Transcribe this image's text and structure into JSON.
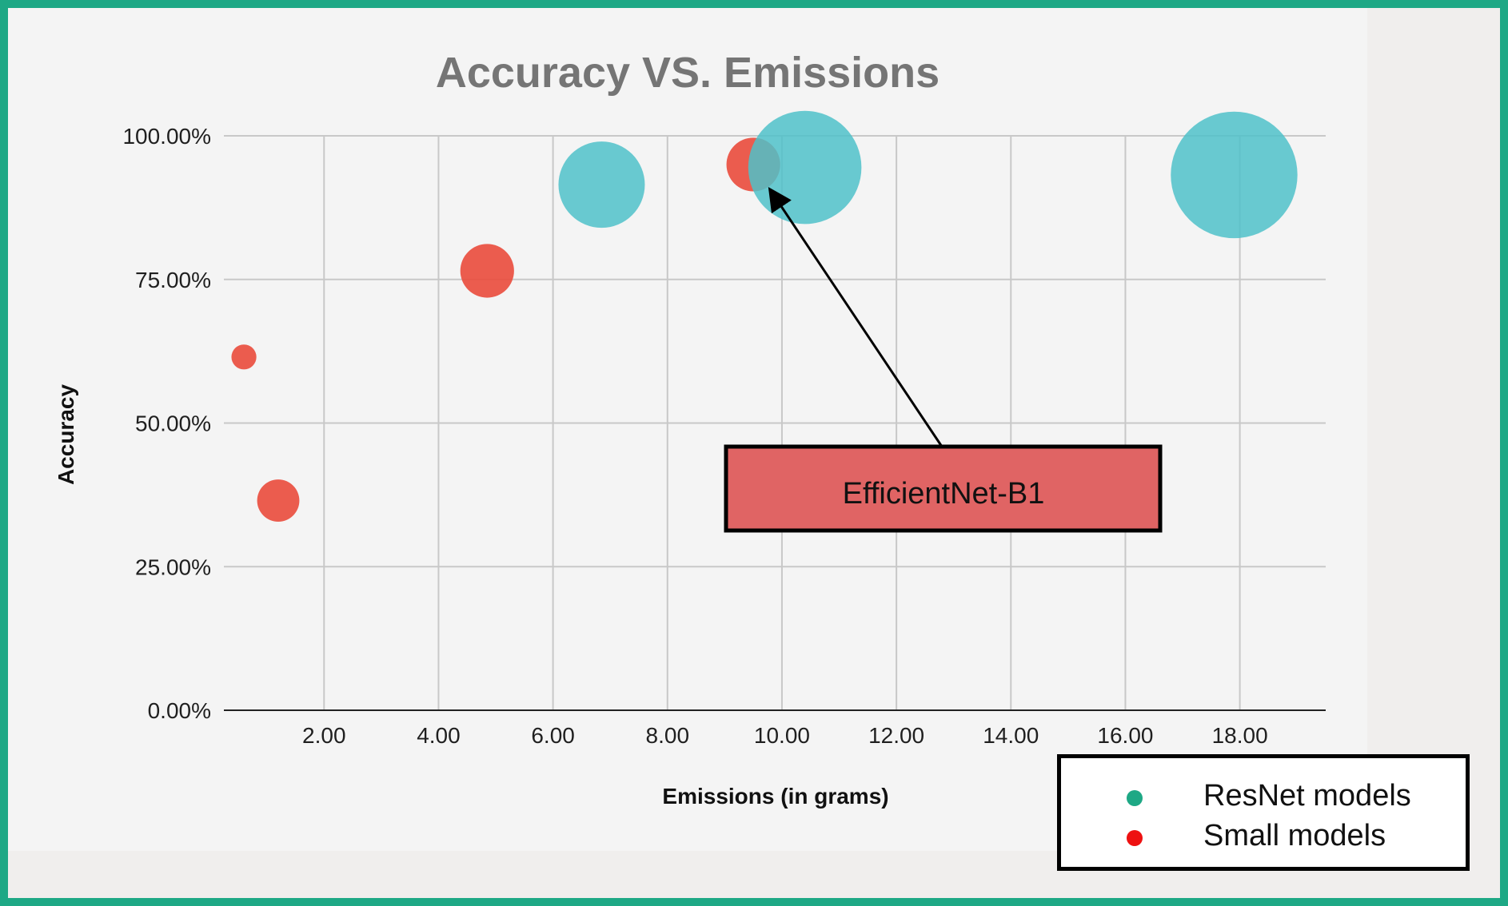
{
  "chart_data": {
    "type": "scatter",
    "title": "Accuracy VS. Emissions",
    "xlabel": "Emissions (in grams)",
    "ylabel": "Accuracy",
    "xlim": [
      0.25,
      19.5
    ],
    "ylim": [
      0,
      100
    ],
    "x_ticks": [
      "2.00",
      "4.00",
      "6.00",
      "8.00",
      "10.00",
      "12.00",
      "14.00",
      "16.00",
      "18.00"
    ],
    "y_ticks": [
      "0.00%",
      "25.00%",
      "50.00%",
      "75.00%",
      "100.00%"
    ],
    "grid": true,
    "series": [
      {
        "name": "ResNet models",
        "color": "#4fc1c9",
        "points": [
          {
            "x": 6.85,
            "y": 91.5,
            "size": 45
          },
          {
            "x": 10.4,
            "y": 94.5,
            "size": 59
          },
          {
            "x": 17.9,
            "y": 93.2,
            "size": 66
          }
        ]
      },
      {
        "name": "Small models",
        "color": "#ea4b3c",
        "points": [
          {
            "x": 0.6,
            "y": 61.5,
            "size": 13
          },
          {
            "x": 1.2,
            "y": 36.5,
            "size": 22
          },
          {
            "x": 4.85,
            "y": 76.5,
            "size": 28
          },
          {
            "x": 9.5,
            "y": 95,
            "size": 28
          }
        ]
      }
    ],
    "annotations": [
      {
        "text": "EfficientNet-B1",
        "target": {
          "x": 9.5,
          "y": 95
        },
        "fill": "#e06464"
      }
    ],
    "legend": {
      "position": "bottom-right",
      "entries": [
        {
          "label": "ResNet models",
          "color": "#1ea885"
        },
        {
          "label": "Small models",
          "color": "#ee1111"
        }
      ]
    }
  },
  "colors": {
    "frame_border": "#1ea885",
    "gridline": "#c8c8c8"
  }
}
